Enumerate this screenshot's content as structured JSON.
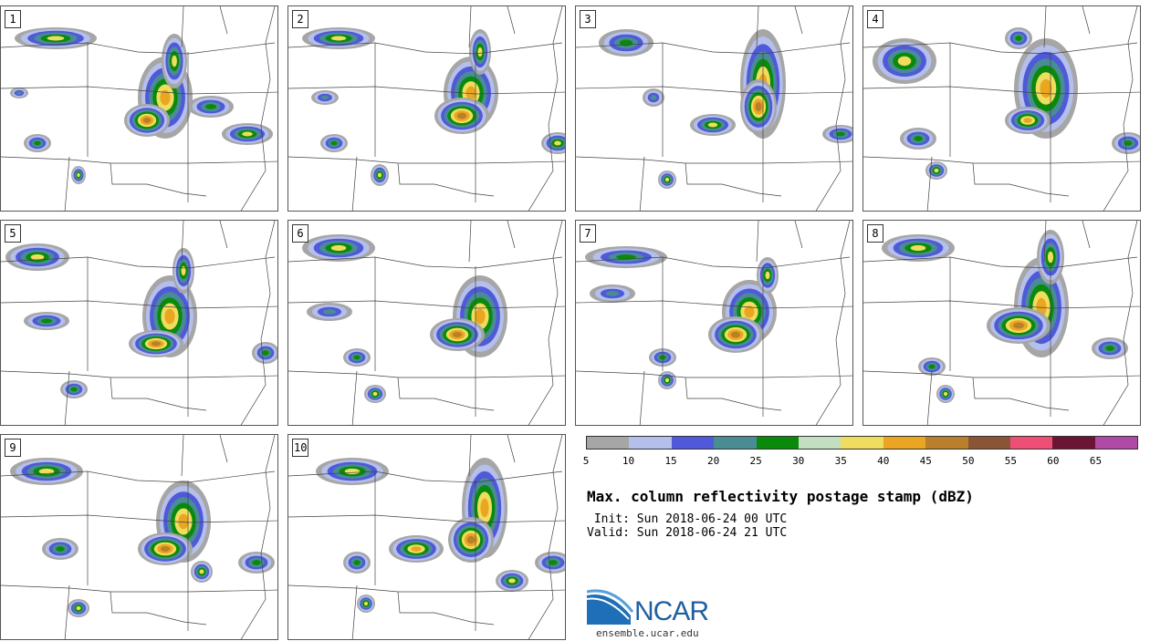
{
  "members": [
    "1",
    "2",
    "3",
    "4",
    "5",
    "6",
    "7",
    "8",
    "9",
    "10"
  ],
  "colorbar": {
    "colors": [
      "#a6a6a6",
      "#b4bfeb",
      "#4f59d9",
      "#4a8c94",
      "#0a8a0a",
      "#c2e0c0",
      "#f0dc5e",
      "#eaa620",
      "#b97f2a",
      "#8a5535",
      "#ef4f77",
      "#6b1433",
      "#b04aa6"
    ],
    "ticks": [
      "5",
      "10",
      "15",
      "20",
      "25",
      "30",
      "35",
      "40",
      "45",
      "50",
      "55",
      "60",
      "65"
    ]
  },
  "title": "Max. column reflectivity postage stamp (dBZ)",
  "init": " Init: Sun 2018-06-24 00 UTC",
  "valid": "Valid: Sun 2018-06-24 21 UTC",
  "logo": {
    "text": "NCAR",
    "url": "ensemble.ucar.edu"
  }
}
